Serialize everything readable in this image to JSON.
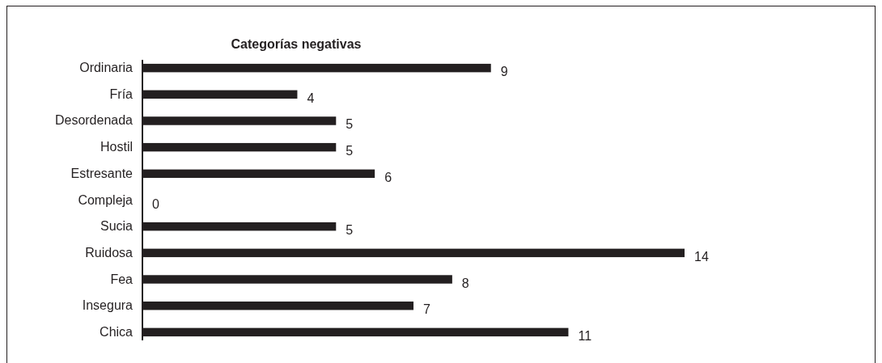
{
  "chart_data": {
    "type": "bar",
    "orientation": "horizontal",
    "title": "Categorías negativas",
    "categories": [
      "Ordinaria",
      "Fría",
      "Desordenada",
      "Hostil",
      "Estresante",
      "Compleja",
      "Sucia",
      "Ruidosa",
      "Fea",
      "Insegura",
      "Chica"
    ],
    "values": [
      9,
      4,
      5,
      5,
      6,
      0,
      5,
      14,
      8,
      7,
      11
    ],
    "color": "#231f20",
    "data_labels": true
  }
}
